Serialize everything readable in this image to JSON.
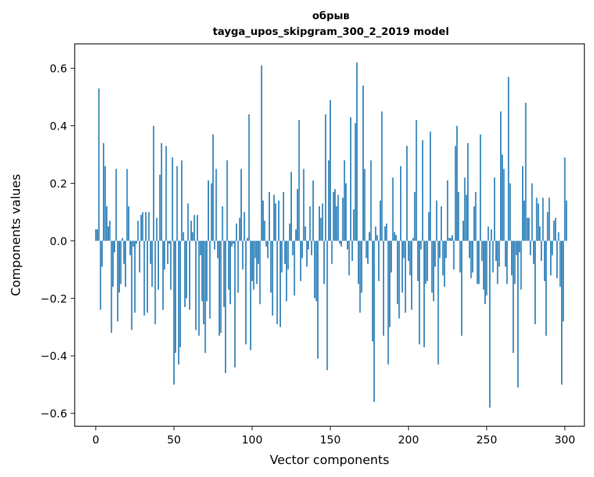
{
  "chart_data": {
    "type": "bar",
    "title": "обрыв",
    "subtitle": "tayga_upos_skipgram_300_2_2019 model",
    "xlabel": "Vector components",
    "ylabel": "Components values",
    "xlim": [
      -13.5,
      312.5
    ],
    "ylim": [
      -0.645,
      0.685
    ],
    "xticks": [
      0,
      50,
      100,
      150,
      200,
      250,
      300
    ],
    "xtick_labels": [
      "0",
      "50",
      "100",
      "150",
      "200",
      "250",
      "300"
    ],
    "yticks": [
      -0.6,
      -0.4,
      -0.2,
      0.0,
      0.2,
      0.4,
      0.6
    ],
    "ytick_labels": [
      "−0.6",
      "−0.4",
      "−0.2",
      "0.0",
      "0.2",
      "0.4",
      "0.6"
    ],
    "grid": false,
    "bar_color": "#1f77b4",
    "values": [
      0.04,
      0.04,
      0.53,
      -0.24,
      -0.09,
      0.34,
      0.26,
      0.12,
      0.05,
      0.07,
      -0.32,
      -0.16,
      -0.04,
      0.25,
      -0.28,
      -0.18,
      -0.15,
      0.01,
      -0.08,
      -0.16,
      0.25,
      0.12,
      -0.05,
      -0.31,
      -0.02,
      -0.25,
      -0.01,
      0.07,
      -0.11,
      0.09,
      0.1,
      -0.26,
      0.1,
      -0.25,
      0.1,
      -0.08,
      -0.16,
      0.4,
      -0.29,
      0.08,
      -0.17,
      0.23,
      0.34,
      -0.24,
      -0.1,
      0.33,
      -0.08,
      -0.01,
      -0.17,
      0.29,
      -0.5,
      -0.39,
      0.26,
      -0.43,
      -0.37,
      0.28,
      0.03,
      -0.23,
      -0.2,
      0.13,
      -0.24,
      0.07,
      0.03,
      0.09,
      -0.31,
      0.09,
      -0.33,
      -0.05,
      -0.21,
      -0.29,
      -0.39,
      -0.21,
      0.21,
      -0.27,
      0.2,
      0.37,
      -0.03,
      0.25,
      -0.06,
      -0.33,
      -0.32,
      0.12,
      -0.23,
      -0.46,
      0.28,
      -0.17,
      -0.22,
      -0.02,
      -0.01,
      -0.44,
      0.06,
      -0.18,
      0.08,
      0.25,
      -0.1,
      0.1,
      -0.36,
      0.01,
      0.44,
      -0.38,
      -0.14,
      -0.17,
      -0.06,
      -0.15,
      -0.08,
      -0.22,
      0.61,
      0.14,
      0.07,
      -0.02,
      -0.06,
      0.17,
      -0.18,
      -0.26,
      0.16,
      0.13,
      -0.29,
      0.14,
      -0.3,
      -0.11,
      0.17,
      -0.08,
      -0.21,
      -0.1,
      0.06,
      0.24,
      -0.05,
      -0.19,
      0.04,
      0.18,
      0.42,
      -0.14,
      -0.06,
      0.25,
      0.05,
      -0.09,
      -0.03,
      0.12,
      -0.05,
      0.21,
      -0.2,
      -0.21,
      -0.41,
      0.12,
      0.08,
      0.13,
      -0.15,
      0.44,
      -0.45,
      0.28,
      0.49,
      -0.08,
      0.17,
      0.18,
      0.12,
      0.16,
      -0.01,
      -0.02,
      0.15,
      0.28,
      0.2,
      -0.03,
      -0.12,
      0.43,
      -0.07,
      0.11,
      0.41,
      0.62,
      -0.15,
      -0.25,
      -0.18,
      0.54,
      0.25,
      -0.06,
      -0.08,
      0.03,
      0.28,
      -0.35,
      -0.56,
      0.05,
      0.02,
      -0.14,
      0.14,
      0.45,
      -0.33,
      0.05,
      0.06,
      -0.43,
      -0.3,
      -0.11,
      0.22,
      0.03,
      0.02,
      -0.22,
      -0.27,
      0.26,
      -0.18,
      -0.06,
      -0.25,
      0.33,
      -0.07,
      -0.12,
      -0.24,
      0.01,
      0.17,
      0.42,
      -0.14,
      -0.36,
      -0.03,
      0.35,
      -0.37,
      -0.15,
      -0.14,
      0.1,
      0.38,
      -0.18,
      -0.21,
      -0.09,
      0.14,
      -0.43,
      -0.06,
      0.12,
      -0.12,
      -0.16,
      -0.06,
      0.21,
      0.01,
      0.01,
      0.02,
      -0.1,
      0.33,
      0.4,
      0.17,
      -0.11,
      -0.33,
      0.07,
      0.22,
      0.16,
      0.34,
      -0.06,
      -0.13,
      -0.11,
      0.12,
      0.17,
      -0.15,
      -0.15,
      0.37,
      -0.07,
      -0.17,
      -0.22,
      -0.19,
      0.05,
      -0.58,
      0.04,
      -0.11,
      0.22,
      -0.07,
      -0.15,
      -0.09,
      0.45,
      0.3,
      0.25,
      -0.09,
      -0.15,
      0.57,
      0.2,
      -0.12,
      -0.39,
      -0.15,
      -0.05,
      -0.51,
      -0.04,
      -0.17,
      0.26,
      0.14,
      0.48,
      0.08,
      0.08,
      -0.05,
      0.2,
      -0.08,
      -0.29,
      0.15,
      0.13,
      0.05,
      -0.07,
      0.15,
      -0.14,
      -0.33,
      0.1,
      0.15,
      -0.12,
      -0.05,
      0.07,
      0.08,
      -0.13,
      0.03,
      -0.16,
      -0.5,
      -0.28,
      0.29,
      0.14
    ]
  }
}
